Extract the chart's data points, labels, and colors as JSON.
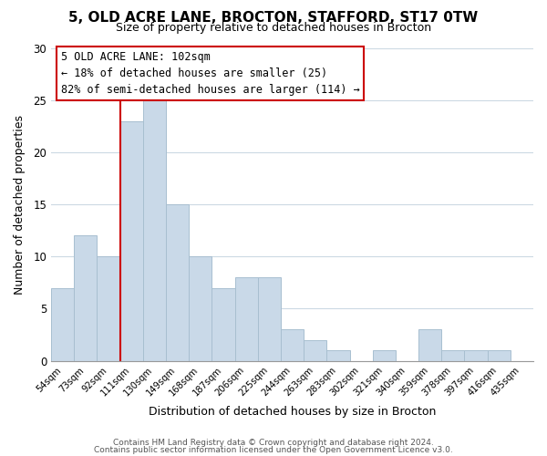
{
  "title": "5, OLD ACRE LANE, BROCTON, STAFFORD, ST17 0TW",
  "subtitle": "Size of property relative to detached houses in Brocton",
  "xlabel": "Distribution of detached houses by size in Brocton",
  "ylabel": "Number of detached properties",
  "bar_labels": [
    "54sqm",
    "73sqm",
    "92sqm",
    "111sqm",
    "130sqm",
    "149sqm",
    "168sqm",
    "187sqm",
    "206sqm",
    "225sqm",
    "244sqm",
    "263sqm",
    "283sqm",
    "302sqm",
    "321sqm",
    "340sqm",
    "359sqm",
    "378sqm",
    "397sqm",
    "416sqm",
    "435sqm"
  ],
  "bar_values": [
    7,
    12,
    10,
    23,
    25,
    15,
    10,
    7,
    8,
    8,
    3,
    2,
    1,
    0,
    1,
    0,
    3,
    1,
    1,
    1,
    0
  ],
  "bar_color": "#c9d9e8",
  "bar_edge_color": "#a8bfd0",
  "vline_color": "#cc0000",
  "ylim": [
    0,
    30
  ],
  "yticks": [
    0,
    5,
    10,
    15,
    20,
    25,
    30
  ],
  "annotation_title": "5 OLD ACRE LANE: 102sqm",
  "annotation_line1": "← 18% of detached houses are smaller (25)",
  "annotation_line2": "82% of semi-detached houses are larger (114) →",
  "annotation_box_color": "#ffffff",
  "annotation_box_edge": "#cc0000",
  "footer_line1": "Contains HM Land Registry data © Crown copyright and database right 2024.",
  "footer_line2": "Contains public sector information licensed under the Open Government Licence v3.0.",
  "background_color": "#ffffff",
  "grid_color": "#ccd9e3"
}
